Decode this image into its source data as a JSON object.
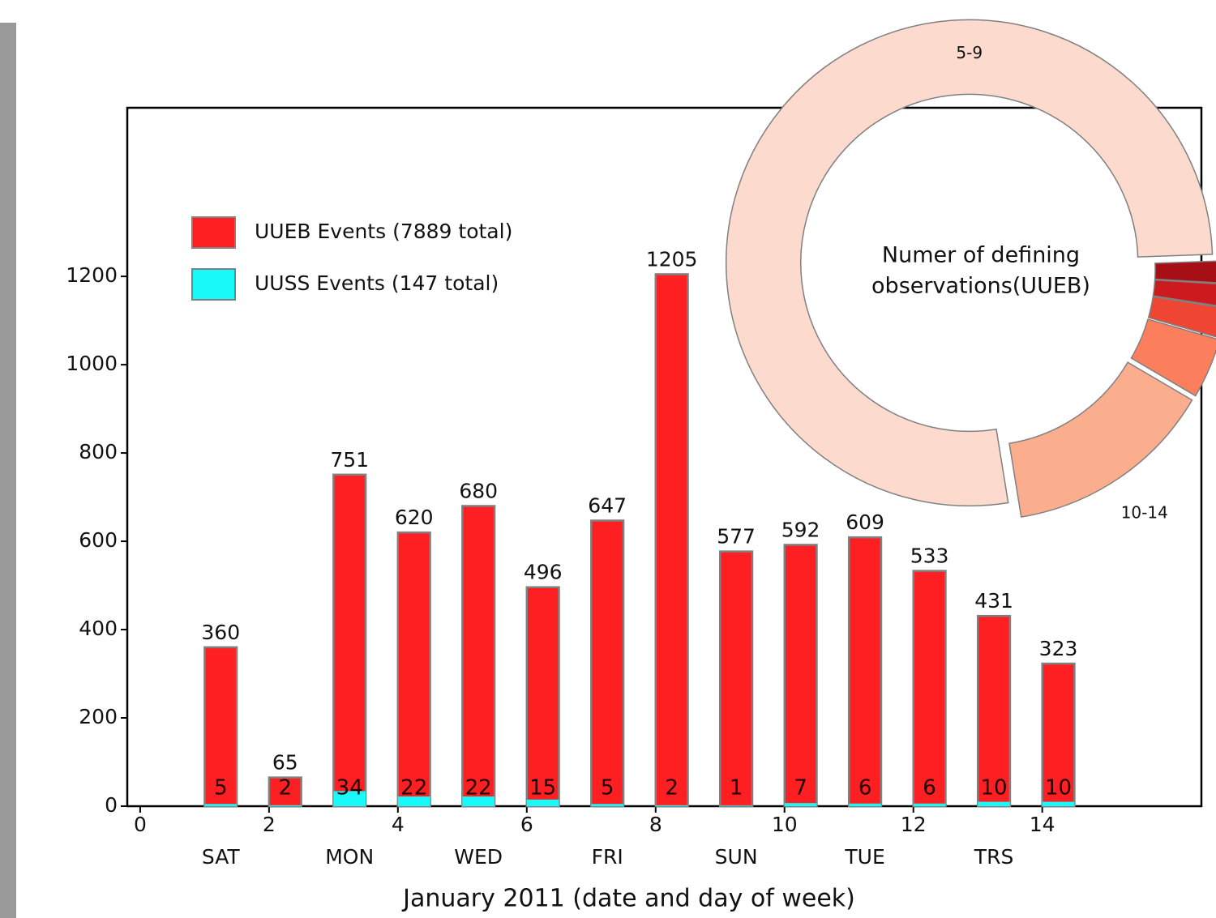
{
  "chart_data": [
    {
      "type": "bar",
      "x_label": "January 2011 (date and day of week)",
      "x": [
        1,
        2,
        3,
        4,
        5,
        6,
        7,
        8,
        9,
        10,
        11,
        12,
        13,
        14
      ],
      "day_labels": [
        "SAT",
        "MON",
        "WED",
        "FRI",
        "SUN",
        "TUE",
        "TRS"
      ],
      "series": [
        {
          "name": "UUEB Events (7889 total)",
          "color": "#fe1f22",
          "values": [
            360,
            65,
            751,
            620,
            680,
            496,
            647,
            1205,
            577,
            592,
            609,
            533,
            431,
            323
          ]
        },
        {
          "name": "UUSS Events (147 total)",
          "color": "#18fafa",
          "values": [
            5,
            2,
            34,
            22,
            22,
            15,
            5,
            2,
            1,
            7,
            6,
            6,
            10,
            10
          ]
        }
      ],
      "xlim": [
        -0.2,
        16.47
      ],
      "xticks": [
        0,
        2,
        4,
        6,
        8,
        10,
        12,
        14
      ],
      "ylim": [
        0,
        1582
      ],
      "yticks": [
        0,
        200,
        400,
        600,
        800,
        1000,
        1200
      ],
      "legend": "upper left"
    },
    {
      "type": "pie",
      "center_label_lines": [
        "Numer of defining",
        "observations(UUEB)"
      ],
      "categories": [
        "5-9",
        "10-14",
        null,
        null,
        null,
        null
      ],
      "values": [
        77,
        14,
        4,
        2,
        1.5,
        1.5
      ],
      "colors": [
        "#fcdacd",
        "#fbae8e",
        "#fb7f5d",
        "#ef4634",
        "#cc1a1f",
        "#a50f15"
      ]
    }
  ]
}
